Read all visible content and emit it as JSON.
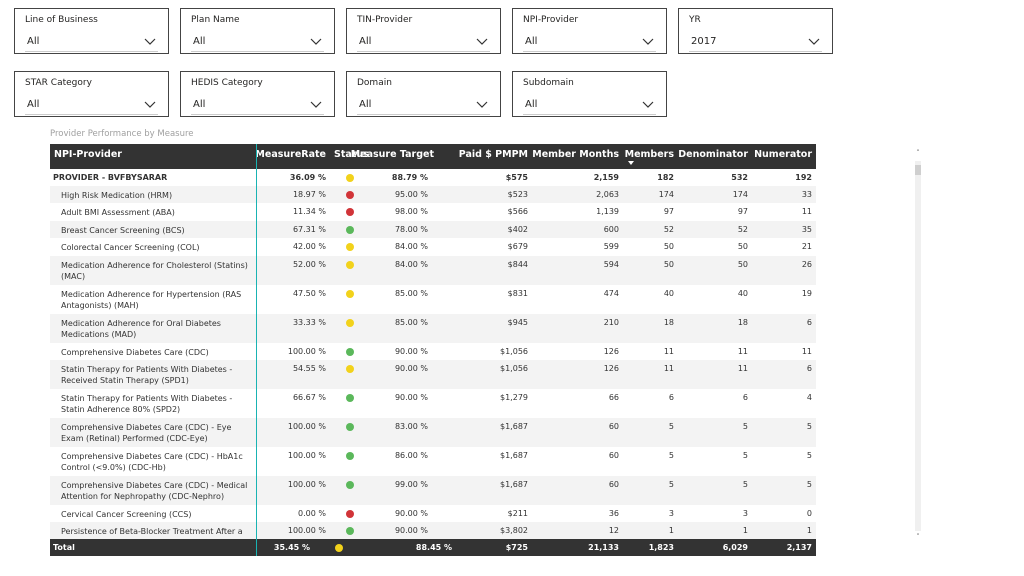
{
  "slicers": [
    {
      "label": "Line of Business",
      "value": "All"
    },
    {
      "label": "Plan Name",
      "value": "All"
    },
    {
      "label": "TIN-Provider",
      "value": "All"
    },
    {
      "label": "NPI-Provider",
      "value": "All"
    },
    {
      "label": "YR",
      "value": "2017"
    },
    {
      "label": "STAR Category",
      "value": "All"
    },
    {
      "label": "HEDIS Category",
      "value": "All"
    },
    {
      "label": "Domain",
      "value": "All"
    },
    {
      "label": "Subdomain",
      "value": "All"
    }
  ],
  "table": {
    "title": "Provider Performance by Measure",
    "columns": [
      "NPI-Provider",
      "MeasureRate",
      "Status",
      "Measure Target",
      "Paid $ PMPM",
      "Member Months",
      "Members",
      "Denominator",
      "Numerator"
    ],
    "status_colors": {
      "yellow": "#f2d21b",
      "red": "#d13438",
      "green": "#5bb85b"
    },
    "provider_row": {
      "name": "PROVIDER - BVFBYSARAR",
      "rate": "36.09 %",
      "status": "yellow",
      "target": "88.79 %",
      "paid": "$575",
      "mm": "2,159",
      "members": "182",
      "den": "532",
      "num": "192"
    },
    "rows": [
      {
        "name": "High Risk Medication (HRM)",
        "rate": "18.97 %",
        "status": "red",
        "target": "95.00 %",
        "paid": "$523",
        "mm": "2,063",
        "members": "174",
        "den": "174",
        "num": "33"
      },
      {
        "name": "Adult BMI Assessment (ABA)",
        "rate": "11.34 %",
        "status": "red",
        "target": "98.00 %",
        "paid": "$566",
        "mm": "1,139",
        "members": "97",
        "den": "97",
        "num": "11"
      },
      {
        "name": "Breast Cancer Screening (BCS)",
        "rate": "67.31 %",
        "status": "green",
        "target": "78.00 %",
        "paid": "$402",
        "mm": "600",
        "members": "52",
        "den": "52",
        "num": "35"
      },
      {
        "name": "Colorectal Cancer Screening (COL)",
        "rate": "42.00 %",
        "status": "yellow",
        "target": "84.00 %",
        "paid": "$679",
        "mm": "599",
        "members": "50",
        "den": "50",
        "num": "21"
      },
      {
        "name": "Medication Adherence for Cholesterol (Statins) (MAC)",
        "rate": "52.00 %",
        "status": "yellow",
        "target": "84.00 %",
        "paid": "$844",
        "mm": "594",
        "members": "50",
        "den": "50",
        "num": "26"
      },
      {
        "name": "Medication Adherence for Hypertension (RAS Antagonists) (MAH)",
        "rate": "47.50 %",
        "status": "yellow",
        "target": "85.00 %",
        "paid": "$831",
        "mm": "474",
        "members": "40",
        "den": "40",
        "num": "19"
      },
      {
        "name": "Medication Adherence for Oral Diabetes Medications (MAD)",
        "rate": "33.33 %",
        "status": "yellow",
        "target": "85.00 %",
        "paid": "$945",
        "mm": "210",
        "members": "18",
        "den": "18",
        "num": "6"
      },
      {
        "name": "Comprehensive Diabetes Care (CDC)",
        "rate": "100.00 %",
        "status": "green",
        "target": "90.00 %",
        "paid": "$1,056",
        "mm": "126",
        "members": "11",
        "den": "11",
        "num": "11"
      },
      {
        "name": "Statin Therapy for Patients With Diabetes - Received Statin Therapy (SPD1)",
        "rate": "54.55 %",
        "status": "yellow",
        "target": "90.00 %",
        "paid": "$1,056",
        "mm": "126",
        "members": "11",
        "den": "11",
        "num": "6"
      },
      {
        "name": "Statin Therapy for Patients With Diabetes - Statin Adherence 80% (SPD2)",
        "rate": "66.67 %",
        "status": "green",
        "target": "90.00 %",
        "paid": "$1,279",
        "mm": "66",
        "members": "6",
        "den": "6",
        "num": "4"
      },
      {
        "name": "Comprehensive Diabetes Care (CDC) - Eye Exam (Retinal) Performed (CDC-Eye)",
        "rate": "100.00 %",
        "status": "green",
        "target": "83.00 %",
        "paid": "$1,687",
        "mm": "60",
        "members": "5",
        "den": "5",
        "num": "5"
      },
      {
        "name": "Comprehensive Diabetes Care (CDC) - HbA1c Control (<9.0%) (CDC-Hb)",
        "rate": "100.00 %",
        "status": "green",
        "target": "86.00 %",
        "paid": "$1,687",
        "mm": "60",
        "members": "5",
        "den": "5",
        "num": "5"
      },
      {
        "name": "Comprehensive Diabetes Care (CDC) - Medical Attention for Nephropathy (CDC-Nephro)",
        "rate": "100.00 %",
        "status": "green",
        "target": "99.00 %",
        "paid": "$1,687",
        "mm": "60",
        "members": "5",
        "den": "5",
        "num": "5"
      },
      {
        "name": "Cervical Cancer Screening (CCS)",
        "rate": "0.00 %",
        "status": "red",
        "target": "90.00 %",
        "paid": "$211",
        "mm": "36",
        "members": "3",
        "den": "3",
        "num": "0"
      },
      {
        "name": "Persistence of Beta-Blocker Treatment After a Heart",
        "rate": "100.00 %",
        "status": "green",
        "target": "90.00 %",
        "paid": "$3,802",
        "mm": "12",
        "members": "1",
        "den": "1",
        "num": "1"
      }
    ],
    "total": {
      "label": "Total",
      "rate": "35.45 %",
      "status": "yellow",
      "target": "88.45 %",
      "paid": "$725",
      "mm": "21,133",
      "members": "1,823",
      "den": "6,029",
      "num": "2,137"
    }
  }
}
